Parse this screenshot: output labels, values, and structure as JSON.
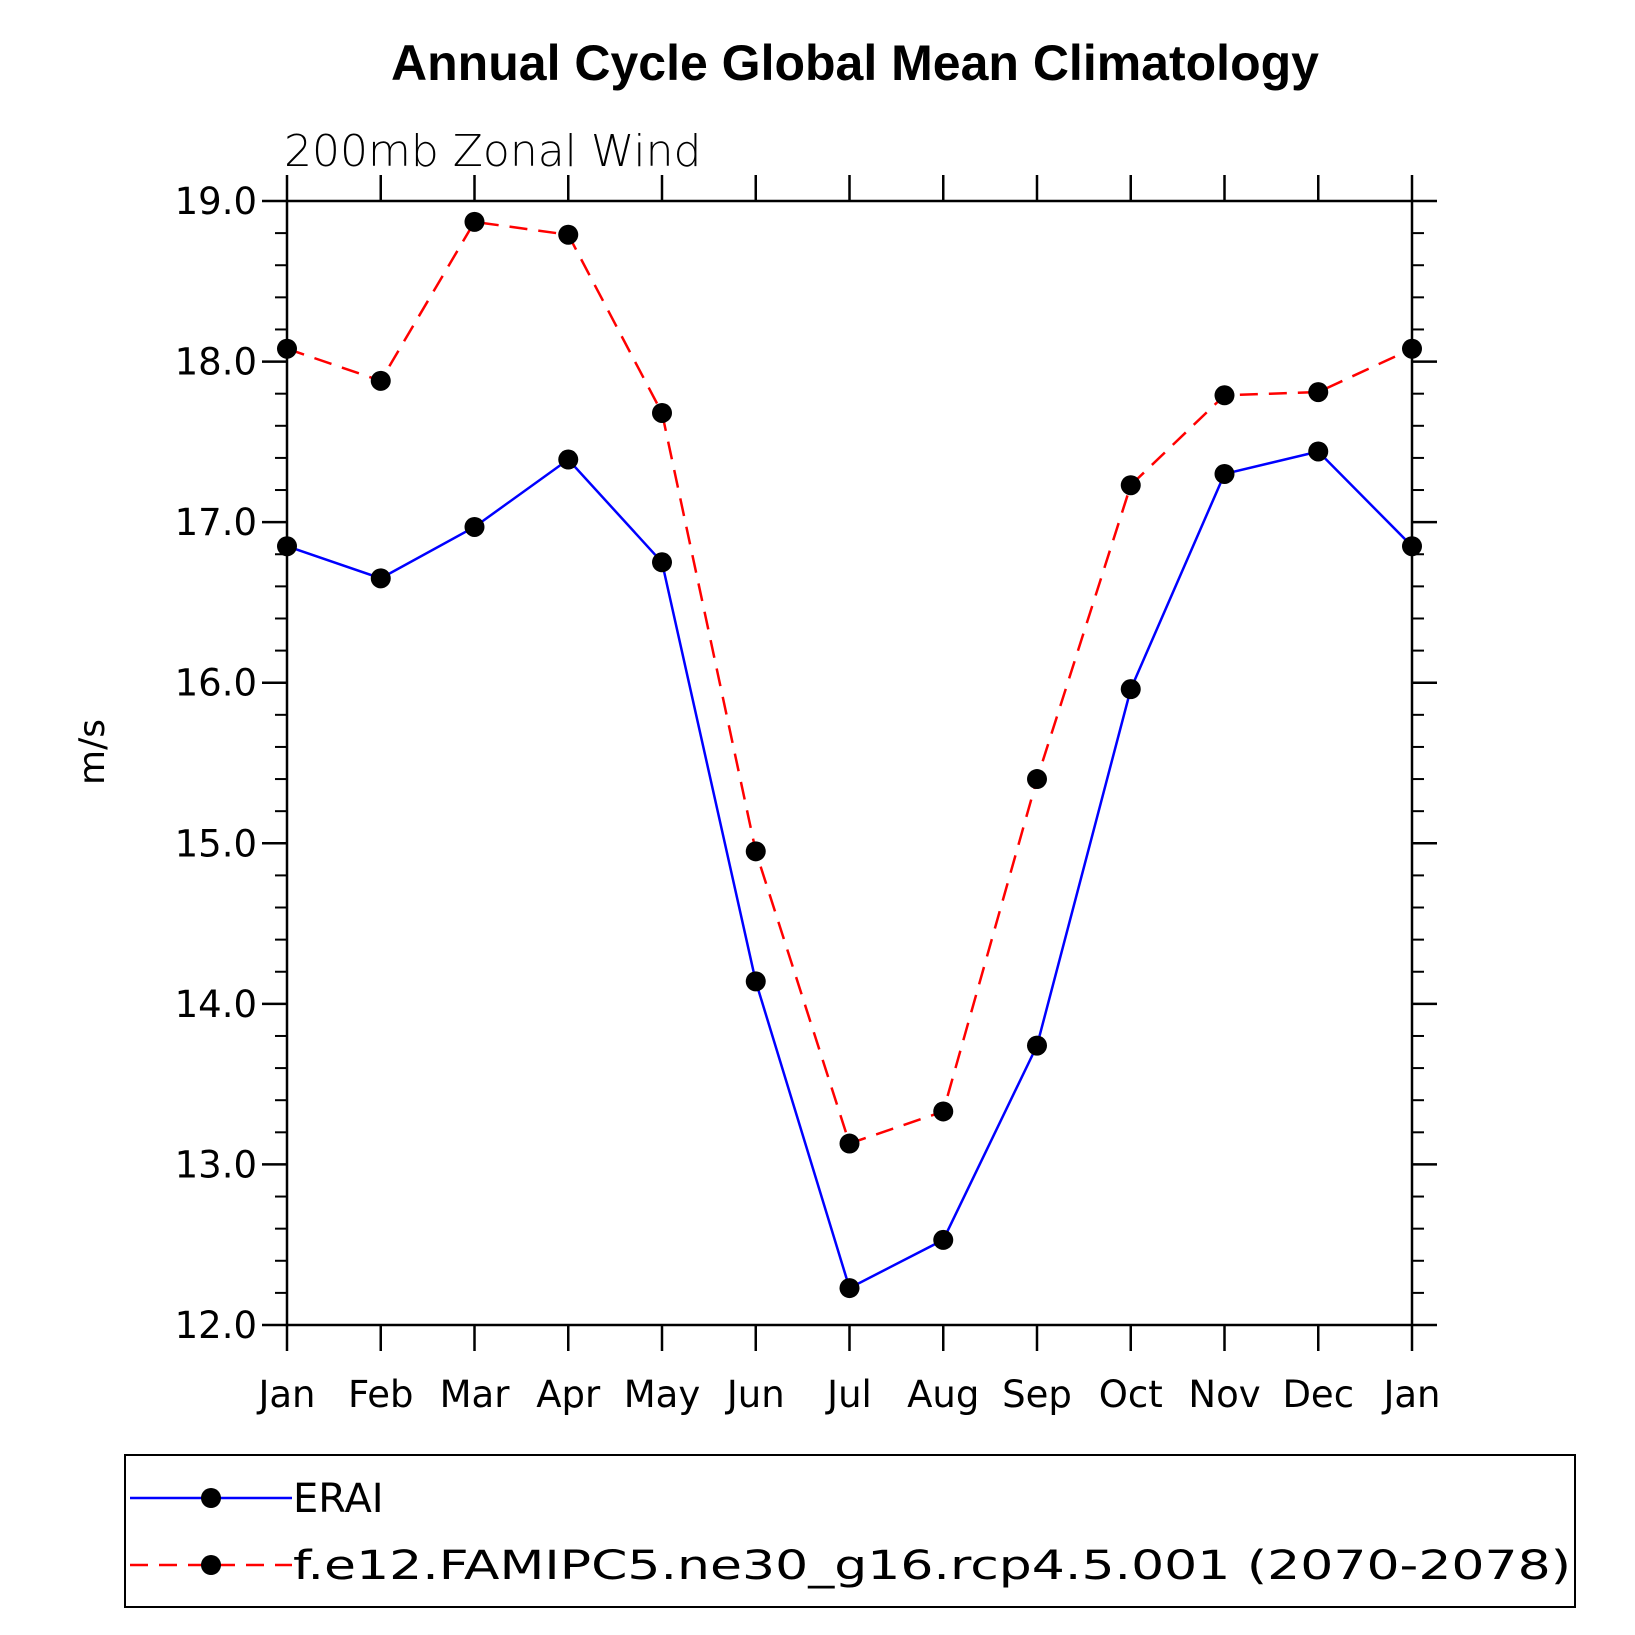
{
  "chart_data": {
    "type": "line",
    "title": "Annual Cycle Global Mean Climatology",
    "subtitle": "200mb Zonal Wind",
    "xlabel": "",
    "ylabel": "m/s",
    "categories": [
      "Jan",
      "Feb",
      "Mar",
      "Apr",
      "May",
      "Jun",
      "Jul",
      "Aug",
      "Sep",
      "Oct",
      "Nov",
      "Dec",
      "Jan"
    ],
    "ylim": [
      12.0,
      19.0
    ],
    "yticks": [
      "12.0",
      "13.0",
      "14.0",
      "15.0",
      "16.0",
      "17.0",
      "18.0",
      "19.0"
    ],
    "grid": false,
    "legend_position": "bottom",
    "series": [
      {
        "name": "ERAI",
        "color": "#0000ff",
        "line_style": "solid",
        "marker": "filled-circle",
        "values": [
          16.85,
          16.65,
          16.97,
          17.39,
          16.75,
          14.14,
          12.23,
          12.53,
          13.74,
          15.96,
          17.3,
          17.44,
          16.85
        ]
      },
      {
        "name": "f.e12.FAMIPC5.ne30_g16.rcp4.5.001 (2070-2078)",
        "color": "#ff0000",
        "line_style": "dashed",
        "marker": "filled-circle",
        "values": [
          18.08,
          17.88,
          18.87,
          18.79,
          17.68,
          14.95,
          13.13,
          13.33,
          15.4,
          17.23,
          17.79,
          17.81,
          18.08
        ]
      }
    ]
  }
}
